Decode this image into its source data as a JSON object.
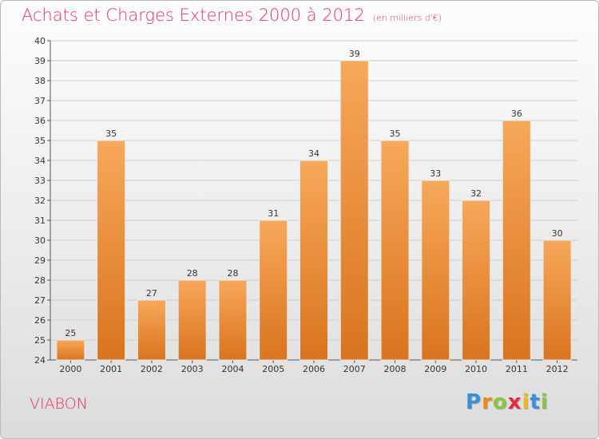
{
  "header": {
    "title": "Achats et Charges Externes 2000 à 2012",
    "subtitle": "(en milliers d'€)"
  },
  "footer": {
    "commune": "VIABON",
    "logo_letters": [
      "P",
      "r",
      "o",
      "x",
      "i",
      "t",
      "i"
    ]
  },
  "colors": {
    "title": "#e2335f",
    "bar_light": "#f7a85a",
    "bar_dark": "#d9741f",
    "grid": "#cccccc"
  },
  "chart_data": {
    "type": "bar",
    "title": "Achats et Charges Externes 2000 à 2012",
    "subtitle": "(en milliers d'€)",
    "categories": [
      "2000",
      "2001",
      "2002",
      "2003",
      "2004",
      "2005",
      "2006",
      "2007",
      "2008",
      "2009",
      "2010",
      "2011",
      "2012"
    ],
    "values": [
      25,
      35,
      27,
      28,
      28,
      31,
      34,
      39,
      35,
      33,
      32,
      36,
      30
    ],
    "ylim": [
      24,
      40
    ],
    "yticks": [
      24,
      25,
      26,
      27,
      28,
      29,
      30,
      31,
      32,
      33,
      34,
      35,
      36,
      37,
      38,
      39,
      40
    ],
    "grid": true,
    "legend": "none"
  }
}
